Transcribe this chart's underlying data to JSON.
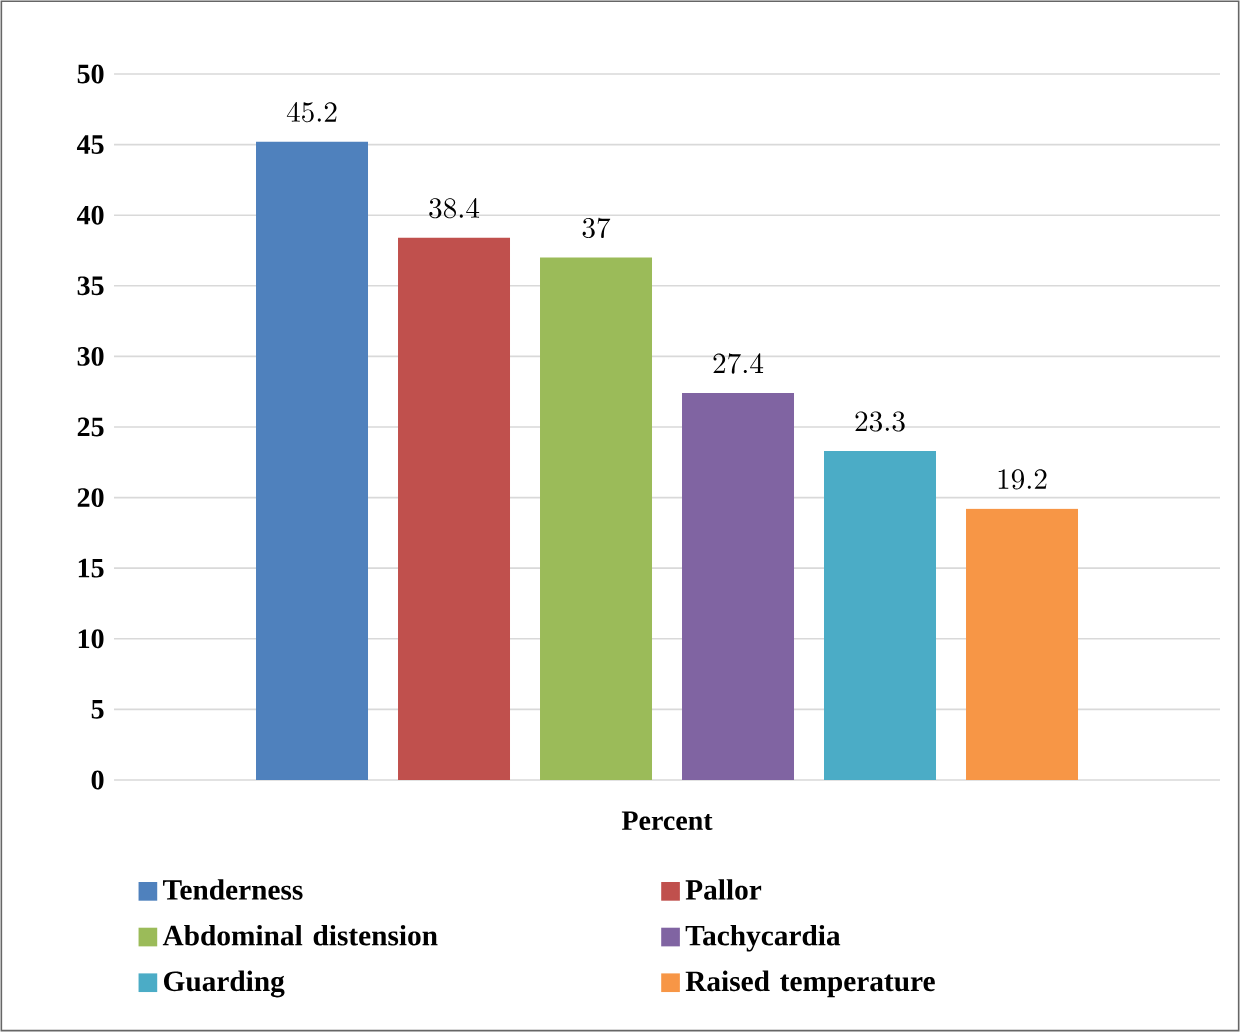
{
  "chart_data": {
    "type": "bar",
    "categories": [
      "Percent"
    ],
    "series": [
      {
        "name": "Tenderness",
        "color": "#4f81bd",
        "values": [
          45.2
        ]
      },
      {
        "name": "Pallor",
        "color": "#c0504d",
        "values": [
          38.4
        ]
      },
      {
        "name": "Abdominal distension",
        "color": "#9bbb59",
        "values": [
          37
        ]
      },
      {
        "name": "Tachycardia",
        "color": "#8064a2",
        "values": [
          27.4
        ]
      },
      {
        "name": "Guarding",
        "color": "#4bacc6",
        "values": [
          23.3
        ]
      },
      {
        "name": "Raised temperature",
        "color": "#f79646",
        "values": [
          19.2
        ]
      }
    ],
    "ylim": [
      0,
      50
    ],
    "yticks": [
      0,
      5,
      10,
      15,
      20,
      25,
      30,
      35,
      40,
      45,
      50
    ],
    "grid": "y",
    "legend": "bottom",
    "data_labels": true
  }
}
